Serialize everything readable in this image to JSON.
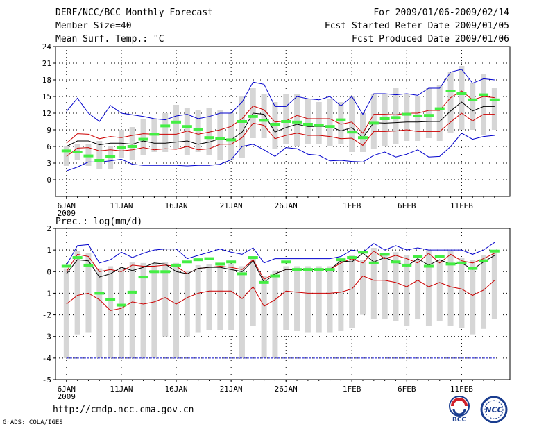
{
  "header": {
    "title": "DERF/NCC/BCC Monthly Forecast",
    "member_size": "Member Size=40",
    "variable": "Mean Surf. Temp.: °C",
    "period": "For 2009/01/06-2009/02/14",
    "started": "Fcst Started Refer Date 2009/01/05",
    "produced": "Fcst Produced Date 2009/01/06"
  },
  "footer": {
    "url": "http://cmdp.ncc.cma.gov.cn",
    "grads": "GrADS: COLA/IGES",
    "bcc_logo_text": "BCC",
    "ncc_logo_text": "NCC"
  },
  "colors": {
    "max": "#0000cc",
    "spread": "#cc0000",
    "mean": "#000000",
    "obs": "#44ee44",
    "box": "#d6d6d6",
    "grid": "#000000"
  },
  "chart_data": [
    {
      "type": "line",
      "title": "Mean Surf. Temp.: °C",
      "xlabel": "",
      "ylabel": "",
      "ylim": [
        -3,
        24
      ],
      "yticks": [
        0,
        3,
        6,
        9,
        12,
        15,
        18,
        21,
        24
      ],
      "x": [
        6,
        7,
        8,
        9,
        10,
        11,
        12,
        13,
        14,
        15,
        16,
        17,
        18,
        19,
        20,
        21,
        22,
        23,
        24,
        25,
        26,
        27,
        28,
        29,
        30,
        31,
        32,
        33,
        34,
        35,
        36,
        37,
        38,
        39,
        40,
        41,
        42,
        43,
        44,
        45
      ],
      "xticks": [
        {
          "day": 6,
          "label": "6JAN",
          "sub": "2009"
        },
        {
          "day": 11,
          "label": "11JAN"
        },
        {
          "day": 16,
          "label": "16JAN"
        },
        {
          "day": 21,
          "label": "21JAN"
        },
        {
          "day": 26,
          "label": "26JAN"
        },
        {
          "day": 32,
          "label": "1FEB"
        },
        {
          "day": 37,
          "label": "6FEB"
        },
        {
          "day": 42,
          "label": "11FEB"
        }
      ],
      "series": [
        {
          "name": "max",
          "values": [
            1.6,
            2.3,
            3.2,
            3.2,
            3.4,
            3.7,
            2.8,
            2.6,
            2.6,
            2.6,
            2.6,
            2.5,
            2.6,
            2.6,
            2.8,
            3.6,
            6.0,
            6.4,
            5.4,
            4.2,
            5.8,
            5.6,
            4.6,
            4.4,
            3.4,
            3.5,
            3.3,
            3.2,
            4.4,
            5.0,
            4.1,
            4.6,
            5.4,
            4.1,
            4.2,
            6.0,
            8.4,
            7.3,
            7.8,
            8.0
          ]
        },
        {
          "name": "upper",
          "values": [
            12.3,
            14.7,
            12.0,
            10.5,
            13.4,
            12.0,
            11.7,
            11.4,
            11.0,
            10.8,
            11.5,
            11.8,
            11.0,
            11.4,
            12.0,
            12.0,
            14.0,
            17.6,
            17.2,
            13.2,
            13.2,
            15.0,
            14.6,
            14.4,
            15.0,
            13.3,
            15.0,
            11.8,
            15.5,
            15.5,
            15.3,
            15.5,
            15.2,
            16.5,
            16.5,
            19.4,
            19.9,
            17.4,
            18.2,
            18.0
          ]
        },
        {
          "name": "spread_hi",
          "values": [
            6.6,
            8.3,
            8.2,
            7.4,
            7.8,
            7.6,
            8.0,
            8.3,
            8.2,
            8.2,
            8.2,
            8.8,
            8.2,
            8.6,
            9.0,
            9.6,
            11.0,
            13.3,
            12.6,
            10.4,
            10.6,
            11.6,
            11.0,
            11.0,
            11.0,
            10.0,
            10.4,
            8.4,
            11.8,
            11.8,
            11.7,
            12.0,
            12.0,
            12.5,
            12.5,
            14.8,
            16.0,
            14.4,
            15.0,
            14.8
          ]
        },
        {
          "name": "mean",
          "values": [
            6.0,
            7.0,
            7.0,
            6.3,
            6.6,
            6.6,
            6.4,
            7.0,
            6.6,
            6.6,
            6.8,
            7.0,
            6.4,
            6.8,
            7.4,
            7.2,
            8.6,
            12.0,
            11.8,
            8.6,
            9.4,
            10.0,
            9.6,
            9.6,
            9.6,
            8.8,
            9.4,
            7.6,
            10.3,
            10.2,
            10.3,
            10.4,
            10.4,
            10.5,
            10.5,
            12.4,
            14.0,
            12.4,
            13.2,
            13.2
          ]
        },
        {
          "name": "spread_lo",
          "values": [
            4.2,
            5.7,
            5.8,
            5.2,
            5.4,
            5.2,
            5.4,
            5.8,
            5.4,
            5.6,
            5.5,
            6.0,
            5.4,
            5.6,
            6.4,
            6.4,
            7.6,
            10.2,
            9.8,
            7.4,
            8.0,
            8.4,
            8.0,
            8.0,
            7.8,
            7.4,
            7.5,
            6.2,
            8.7,
            8.7,
            8.8,
            9.0,
            8.7,
            8.7,
            8.7,
            10.4,
            12.0,
            10.6,
            11.8,
            11.8
          ]
        }
      ],
      "obs": [
        5.2,
        5.0,
        4.3,
        3.5,
        4.2,
        5.8,
        6.0,
        7.3,
        8.2,
        9.7,
        10.4,
        9.6,
        9.0,
        7.6,
        7.5,
        7.2,
        10.5,
        11.4,
        10.7,
        10.0,
        10.5,
        10.4,
        10.0,
        9.8,
        9.6,
        10.8,
        8.6,
        7.6,
        10.2,
        11.0,
        11.2,
        11.8,
        11.5,
        11.6,
        12.8,
        16.0,
        15.5,
        14.4,
        15.3,
        14.4
      ],
      "boxes": [
        [
          2.5,
          6.0
        ],
        [
          3.5,
          6.5
        ],
        [
          2.5,
          6.5
        ],
        [
          2.0,
          7.0
        ],
        [
          2.0,
          6.0
        ],
        [
          4.0,
          9.0
        ],
        [
          3.5,
          9.5
        ],
        [
          4.5,
          11.0
        ],
        [
          5.0,
          11.0
        ],
        [
          5.0,
          12.0
        ],
        [
          5.5,
          13.5
        ],
        [
          4.5,
          13.0
        ],
        [
          5.0,
          12.5
        ],
        [
          4.5,
          13.0
        ],
        [
          3.5,
          12.5
        ],
        [
          3.5,
          12.0
        ],
        [
          4.0,
          15.0
        ],
        [
          7.5,
          16.5
        ],
        [
          7.5,
          15.5
        ],
        [
          5.5,
          14.0
        ],
        [
          6.5,
          15.5
        ],
        [
          6.0,
          15.5
        ],
        [
          6.5,
          14.5
        ],
        [
          6.5,
          14.0
        ],
        [
          6.0,
          14.5
        ],
        [
          6.5,
          14.0
        ],
        [
          5.0,
          15.0
        ],
        [
          5.0,
          12.0
        ],
        [
          5.5,
          15.5
        ],
        [
          6.0,
          15.5
        ],
        [
          6.5,
          16.5
        ],
        [
          7.0,
          15.5
        ],
        [
          7.0,
          15.0
        ],
        [
          7.5,
          16.5
        ],
        [
          7.0,
          17.0
        ],
        [
          8.5,
          19.5
        ],
        [
          9.0,
          20.5
        ],
        [
          9.0,
          17.5
        ],
        [
          8.0,
          19.0
        ],
        [
          9.0,
          16.5
        ]
      ]
    },
    {
      "type": "line",
      "title": "Prec.: log(mm/d)",
      "xlabel": "",
      "ylabel": "",
      "ylim": [
        -5,
        2
      ],
      "yticks": [
        -5,
        -4,
        -3,
        -2,
        -1,
        0,
        1,
        2
      ],
      "x": [
        6,
        7,
        8,
        9,
        10,
        11,
        12,
        13,
        14,
        15,
        16,
        17,
        18,
        19,
        20,
        21,
        22,
        23,
        24,
        25,
        26,
        27,
        28,
        29,
        30,
        31,
        32,
        33,
        34,
        35,
        36,
        37,
        38,
        39,
        40,
        41,
        42,
        43,
        44,
        45
      ],
      "xticks": [
        {
          "day": 6,
          "label": "6JAN",
          "sub": "2009"
        },
        {
          "day": 11,
          "label": "11JAN"
        },
        {
          "day": 16,
          "label": "16JAN"
        },
        {
          "day": 21,
          "label": "21JAN"
        },
        {
          "day": 26,
          "label": "26JAN"
        },
        {
          "day": 32,
          "label": "1FEB"
        },
        {
          "day": 37,
          "label": "6FEB"
        },
        {
          "day": 42,
          "label": "11FEB"
        }
      ],
      "floor": -4,
      "series": [
        {
          "name": "max",
          "values": [
            0.3,
            1.2,
            1.25,
            0.4,
            0.55,
            0.9,
            0.65,
            0.85,
            1.0,
            1.05,
            1.05,
            0.6,
            0.75,
            0.9,
            1.05,
            0.9,
            0.8,
            1.1,
            0.4,
            0.6,
            0.6,
            0.6,
            0.6,
            0.6,
            0.6,
            0.7,
            1.0,
            0.9,
            1.3,
            1.0,
            1.2,
            1.0,
            1.1,
            1.0,
            1.0,
            1.0,
            1.0,
            0.8,
            1.0,
            1.35
          ]
        },
        {
          "name": "spread_hi",
          "values": [
            0.0,
            0.8,
            0.7,
            0.0,
            0.1,
            0.0,
            0.3,
            0.25,
            0.25,
            0.3,
            0.25,
            -0.1,
            0.15,
            0.2,
            0.25,
            0.2,
            0.1,
            0.55,
            -0.35,
            -0.1,
            0.1,
            0.1,
            0.1,
            0.1,
            0.1,
            0.4,
            0.6,
            0.4,
            0.95,
            0.6,
            0.75,
            0.6,
            0.4,
            0.85,
            0.4,
            0.8,
            0.5,
            0.4,
            0.6,
            0.85
          ]
        },
        {
          "name": "mean",
          "values": [
            -0.1,
            0.55,
            0.5,
            -0.25,
            -0.1,
            0.2,
            0.05,
            0.2,
            0.4,
            0.35,
            0.0,
            -0.1,
            0.15,
            0.2,
            0.2,
            0.1,
            0.0,
            0.5,
            -0.5,
            -0.1,
            0.1,
            0.1,
            0.1,
            0.1,
            0.1,
            0.5,
            0.45,
            0.85,
            0.45,
            0.65,
            0.45,
            0.25,
            0.6,
            0.3,
            0.55,
            0.35,
            0.4,
            0.1,
            0.45,
            0.75
          ]
        },
        {
          "name": "spread_lo",
          "values": [
            -1.5,
            -1.1,
            -1.0,
            -1.3,
            -1.8,
            -1.7,
            -1.4,
            -1.5,
            -1.4,
            -1.2,
            -1.5,
            -1.2,
            -1.0,
            -0.9,
            -0.9,
            -0.9,
            -1.25,
            -0.7,
            -1.6,
            -1.3,
            -0.9,
            -0.95,
            -1.0,
            -1.0,
            -1.0,
            -0.95,
            -0.8,
            -0.2,
            -0.4,
            -0.4,
            -0.5,
            -0.7,
            -0.4,
            -0.7,
            -0.5,
            -0.7,
            -0.8,
            -1.1,
            -0.85,
            -0.4
          ]
        }
      ],
      "obs": [
        0.25,
        0.65,
        0.3,
        -1.0,
        -1.3,
        -1.55,
        -0.95,
        -0.25,
        0.0,
        0.0,
        0.3,
        0.45,
        0.55,
        0.6,
        0.35,
        0.45,
        -0.1,
        0.65,
        -0.5,
        -0.2,
        0.45,
        0.1,
        0.1,
        0.1,
        0.1,
        0.55,
        0.65,
        0.9,
        0.4,
        0.8,
        0.45,
        0.3,
        0.7,
        0.25,
        0.7,
        0.35,
        0.4,
        0.15,
        0.5,
        0.95
      ]
    }
  ]
}
